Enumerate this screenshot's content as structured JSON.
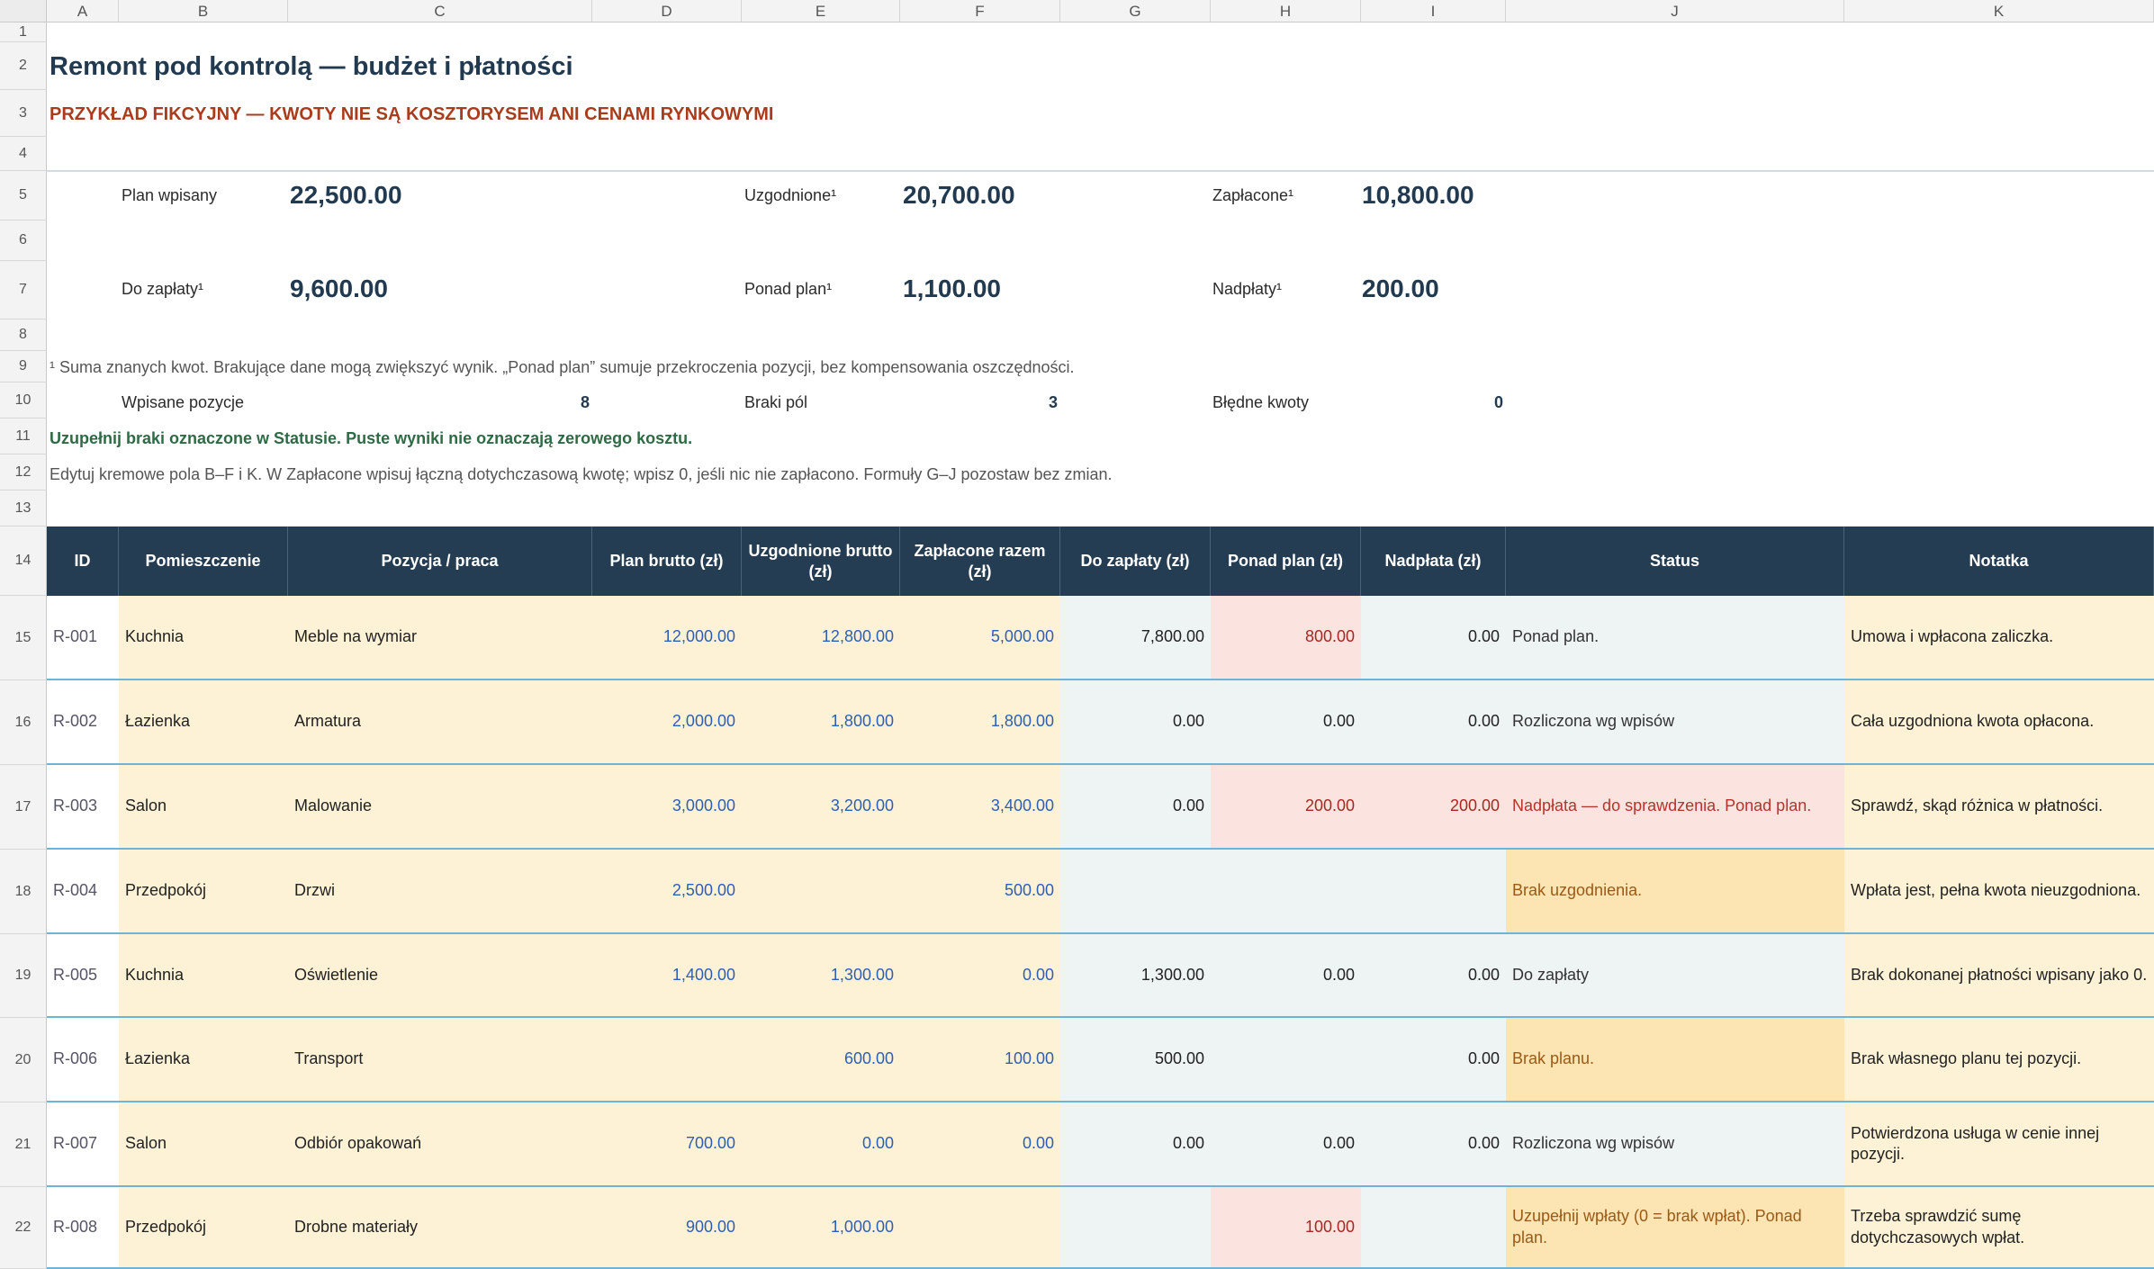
{
  "columns": [
    "A",
    "B",
    "C",
    "D",
    "E",
    "F",
    "G",
    "H",
    "I",
    "J",
    "K"
  ],
  "rows": [
    "1",
    "2",
    "3",
    "4",
    "5",
    "6",
    "7",
    "8",
    "9",
    "10",
    "11",
    "12",
    "13",
    "14",
    "15",
    "16",
    "17",
    "18",
    "19",
    "20",
    "21",
    "22"
  ],
  "title": "Remont pod kontrolą — budżet i płatności",
  "subtitle": "PRZYKŁAD FIKCYJNY — KWOTY NIE SĄ KOSZTORYSEM ANI CENAMI RYNKOWYMI",
  "kpis": {
    "plan_label": "Plan wpisany",
    "plan_value": "22,500.00",
    "agreed_label": "Uzgodnione¹",
    "agreed_value": "20,700.00",
    "paid_label": "Zapłacone¹",
    "paid_value": "10,800.00",
    "due_label": "Do zapłaty¹",
    "due_value": "9,600.00",
    "over_label": "Ponad plan¹",
    "over_value": "1,100.00",
    "overpay_label": "Nadpłaty¹",
    "overpay_value": "200.00"
  },
  "footnote": "¹ Suma znanych kwot. Brakujące dane mogą zwiększyć wynik. „Ponad plan” sumuje przekroczenia pozycji, bez kompensowania oszczędności.",
  "counts": {
    "entered_label": "Wpisane pozycje",
    "entered_value": "8",
    "missing_label": "Braki pól",
    "missing_value": "3",
    "errors_label": "Błędne kwoty",
    "errors_value": "0"
  },
  "reminder": "Uzupełnij braki oznaczone w Statusie. Puste wyniki nie oznaczają zerowego kosztu.",
  "instructions": "Edytuj kremowe pola B–F i K. W Zapłacone wpisuj łączną dotychczasową kwotę; wpisz 0, jeśli nic nie zapłacono. Formuły G–J pozostaw bez zmian.",
  "table": {
    "headers": [
      "ID",
      "Pomieszczenie",
      "Pozycja / praca",
      "Plan brutto (zł)",
      "Uzgodnione brutto (zł)",
      "Zapłacone razem (zł)",
      "Do zapłaty (zł)",
      "Ponad plan (zł)",
      "Nadpłata (zł)",
      "Status",
      "Notatka"
    ],
    "rows": [
      {
        "id": "R-001",
        "room": "Kuchnia",
        "item": "Meble na wymiar",
        "plan": "12,000.00",
        "agreed": "12,800.00",
        "paid": "5,000.00",
        "due": "7,800.00",
        "over": "800.00",
        "overpay": "0.00",
        "status": "Ponad plan.",
        "note": "Umowa i wpłacona zaliczka."
      },
      {
        "id": "R-002",
        "room": "Łazienka",
        "item": "Armatura",
        "plan": "2,000.00",
        "agreed": "1,800.00",
        "paid": "1,800.00",
        "due": "0.00",
        "over": "0.00",
        "overpay": "0.00",
        "status": "Rozliczona wg wpisów",
        "note": "Cała uzgodniona kwota opłacona."
      },
      {
        "id": "R-003",
        "room": "Salon",
        "item": "Malowanie",
        "plan": "3,000.00",
        "agreed": "3,200.00",
        "paid": "3,400.00",
        "due": "0.00",
        "over": "200.00",
        "overpay": "200.00",
        "status": "Nadpłata — do sprawdzenia. Ponad plan.",
        "note": "Sprawdź, skąd różnica w płatności."
      },
      {
        "id": "R-004",
        "room": "Przedpokój",
        "item": "Drzwi",
        "plan": "2,500.00",
        "agreed": "",
        "paid": "500.00",
        "due": "",
        "over": "",
        "overpay": "",
        "status": "Brak uzgodnienia.",
        "note": "Wpłata jest, pełna kwota nieuzgodniona."
      },
      {
        "id": "R-005",
        "room": "Kuchnia",
        "item": "Oświetlenie",
        "plan": "1,400.00",
        "agreed": "1,300.00",
        "paid": "0.00",
        "due": "1,300.00",
        "over": "0.00",
        "overpay": "0.00",
        "status": "Do zapłaty",
        "note": "Brak dokonanej płatności wpisany jako 0."
      },
      {
        "id": "R-006",
        "room": "Łazienka",
        "item": "Transport",
        "plan": "",
        "agreed": "600.00",
        "paid": "100.00",
        "due": "500.00",
        "over": "",
        "overpay": "0.00",
        "status": "Brak planu.",
        "note": "Brak własnego planu tej pozycji."
      },
      {
        "id": "R-007",
        "room": "Salon",
        "item": "Odbiór opakowań",
        "plan": "700.00",
        "agreed": "0.00",
        "paid": "0.00",
        "due": "0.00",
        "over": "0.00",
        "overpay": "0.00",
        "status": "Rozliczona wg wpisów",
        "note": "Potwierdzona usługa w cenie innej pozycji."
      },
      {
        "id": "R-008",
        "room": "Przedpokój",
        "item": "Drobne materiały",
        "plan": "900.00",
        "agreed": "1,000.00",
        "paid": "",
        "due": "",
        "over": "100.00",
        "overpay": "",
        "status": "Uzupełnij wpłaty (0 = brak wpłat). Ponad plan.",
        "note": "Trzeba sprawdzić sumę dotychczasowych wpłat."
      }
    ]
  }
}
